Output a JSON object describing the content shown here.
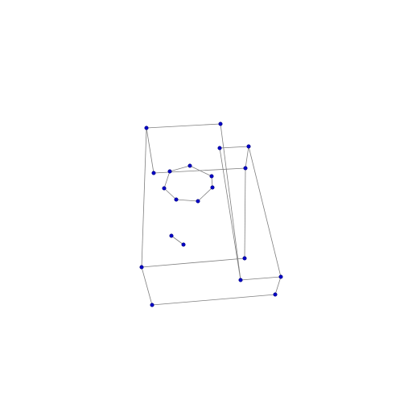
{
  "diagram": {
    "edge_color": "#7f7f7f",
    "vertex_color": "#0000c8",
    "vertices": [
      {
        "id": "v1"
      },
      {
        "id": "v2"
      },
      {
        "id": "v3"
      },
      {
        "id": "v4"
      },
      {
        "id": "v5"
      },
      {
        "id": "v6"
      },
      {
        "id": "v7"
      },
      {
        "id": "v8"
      },
      {
        "id": "v9"
      },
      {
        "id": "v10"
      },
      {
        "id": "v11"
      },
      {
        "id": "v12"
      },
      {
        "id": "v13"
      },
      {
        "id": "v14"
      },
      {
        "id": "v15"
      },
      {
        "id": "v16"
      },
      {
        "id": "h1"
      },
      {
        "id": "h2"
      },
      {
        "id": "h3"
      },
      {
        "id": "h4"
      },
      {
        "id": "h5"
      },
      {
        "id": "h6"
      },
      {
        "id": "h7"
      },
      {
        "id": "s1"
      },
      {
        "id": "s2"
      }
    ],
    "edges": [
      [
        "v1",
        "v2"
      ],
      [
        "v1",
        "v3"
      ],
      [
        "v1",
        "v5"
      ],
      [
        "v2",
        "v13"
      ],
      [
        "v3",
        "v4"
      ],
      [
        "v3",
        "v14"
      ],
      [
        "v4",
        "v6"
      ],
      [
        "v5",
        "v6"
      ],
      [
        "v5",
        "v7"
      ],
      [
        "v6",
        "v8"
      ],
      [
        "v7",
        "v8"
      ],
      [
        "v7",
        "v10"
      ],
      [
        "v8",
        "v11"
      ],
      [
        "v9",
        "v10"
      ],
      [
        "v9",
        "v11"
      ],
      [
        "v9",
        "v13"
      ],
      [
        "v10",
        "v14"
      ],
      [
        "v11",
        "v12"
      ],
      [
        "v12",
        "v16"
      ],
      [
        "v15",
        "v16"
      ],
      [
        "v13",
        "v15"
      ],
      [
        "h1",
        "h2"
      ],
      [
        "h2",
        "h3"
      ],
      [
        "h3",
        "h4"
      ],
      [
        "h4",
        "h5"
      ],
      [
        "h5",
        "h6"
      ],
      [
        "h6",
        "h7"
      ],
      [
        "h7",
        "h1"
      ],
      [
        "s1",
        "s2"
      ]
    ]
  }
}
